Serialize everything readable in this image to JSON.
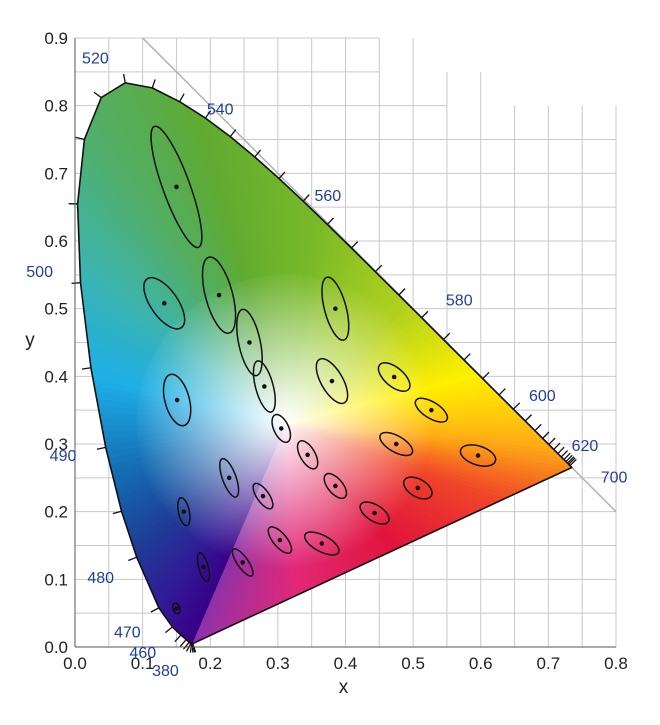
{
  "chart_data": {
    "type": "scatter",
    "title": "",
    "xlabel": "x",
    "ylabel": "y",
    "xlim": [
      0,
      0.8
    ],
    "ylim": [
      0,
      0.9
    ],
    "x_ticks": [
      "0.0",
      "0.1",
      "0.2",
      "0.3",
      "0.4",
      "0.5",
      "0.6",
      "0.7",
      "0.8"
    ],
    "y_ticks": [
      "0.0",
      "0.1",
      "0.2",
      "0.3",
      "0.4",
      "0.5",
      "0.6",
      "0.7",
      "0.8",
      "0.9"
    ],
    "grid": true,
    "locus_color": "#1f3f9f",
    "wavelength_labels": [
      {
        "nm": "380",
        "x": 0.174,
        "y": 0.005
      },
      {
        "nm": "460",
        "x": 0.144,
        "y": 0.03
      },
      {
        "nm": "470",
        "x": 0.124,
        "y": 0.058
      },
      {
        "nm": "480",
        "x": 0.091,
        "y": 0.133
      },
      {
        "nm": "490",
        "x": 0.045,
        "y": 0.295
      },
      {
        "nm": "500",
        "x": 0.008,
        "y": 0.538
      },
      {
        "nm": "520",
        "x": 0.074,
        "y": 0.834
      },
      {
        "nm": "540",
        "x": 0.23,
        "y": 0.754
      },
      {
        "nm": "560",
        "x": 0.373,
        "y": 0.624
      },
      {
        "nm": "580",
        "x": 0.513,
        "y": 0.487
      },
      {
        "nm": "600",
        "x": 0.627,
        "y": 0.373
      },
      {
        "nm": "620",
        "x": 0.691,
        "y": 0.308
      },
      {
        "nm": "700",
        "x": 0.735,
        "y": 0.265
      }
    ],
    "locus": [
      [
        0.1741,
        0.005
      ],
      [
        0.1738,
        0.0049
      ],
      [
        0.1733,
        0.0048
      ],
      [
        0.1726,
        0.0048
      ],
      [
        0.1714,
        0.0051
      ],
      [
        0.1689,
        0.0069
      ],
      [
        0.1644,
        0.0109
      ],
      [
        0.1566,
        0.0177
      ],
      [
        0.144,
        0.0297
      ],
      [
        0.1241,
        0.0578
      ],
      [
        0.0913,
        0.1327
      ],
      [
        0.0687,
        0.2007
      ],
      [
        0.0454,
        0.295
      ],
      [
        0.0235,
        0.4127
      ],
      [
        0.0082,
        0.5384
      ],
      [
        0.0039,
        0.6548
      ],
      [
        0.0139,
        0.7502
      ],
      [
        0.0389,
        0.812
      ],
      [
        0.0743,
        0.8338
      ],
      [
        0.1142,
        0.8262
      ],
      [
        0.1547,
        0.8059
      ],
      [
        0.1929,
        0.7816
      ],
      [
        0.2296,
        0.7543
      ],
      [
        0.2658,
        0.7243
      ],
      [
        0.3016,
        0.6923
      ],
      [
        0.3373,
        0.6589
      ],
      [
        0.3731,
        0.6245
      ],
      [
        0.4087,
        0.5896
      ],
      [
        0.4441,
        0.5547
      ],
      [
        0.4788,
        0.5202
      ],
      [
        0.5125,
        0.4866
      ],
      [
        0.5448,
        0.4544
      ],
      [
        0.5752,
        0.4242
      ],
      [
        0.6029,
        0.3965
      ],
      [
        0.627,
        0.3725
      ],
      [
        0.6482,
        0.3514
      ],
      [
        0.6658,
        0.334
      ],
      [
        0.6801,
        0.3197
      ],
      [
        0.6915,
        0.3083
      ],
      [
        0.7006,
        0.2993
      ],
      [
        0.7079,
        0.292
      ],
      [
        0.714,
        0.2859
      ],
      [
        0.719,
        0.2809
      ],
      [
        0.723,
        0.277
      ],
      [
        0.726,
        0.274
      ],
      [
        0.7283,
        0.2717
      ],
      [
        0.73,
        0.27
      ],
      [
        0.732,
        0.268
      ],
      [
        0.7347,
        0.2653
      ]
    ],
    "ellipses": [
      {
        "cx": 0.15,
        "cy": 0.68,
        "rx": 0.02,
        "ry": 0.095,
        "angle": -20
      },
      {
        "cx": 0.213,
        "cy": 0.52,
        "rx": 0.02,
        "ry": 0.058,
        "angle": -15
      },
      {
        "cx": 0.132,
        "cy": 0.508,
        "rx": 0.02,
        "ry": 0.044,
        "angle": -35
      },
      {
        "cx": 0.258,
        "cy": 0.45,
        "rx": 0.016,
        "ry": 0.05,
        "angle": -12
      },
      {
        "cx": 0.151,
        "cy": 0.365,
        "rx": 0.018,
        "ry": 0.039,
        "angle": -15
      },
      {
        "cx": 0.28,
        "cy": 0.385,
        "rx": 0.013,
        "ry": 0.039,
        "angle": -15
      },
      {
        "cx": 0.385,
        "cy": 0.5,
        "rx": 0.016,
        "ry": 0.048,
        "angle": -15
      },
      {
        "cx": 0.38,
        "cy": 0.393,
        "rx": 0.016,
        "ry": 0.037,
        "angle": -30
      },
      {
        "cx": 0.472,
        "cy": 0.399,
        "rx": 0.014,
        "ry": 0.028,
        "angle": -50
      },
      {
        "cx": 0.527,
        "cy": 0.35,
        "rx": 0.012,
        "ry": 0.027,
        "angle": -58
      },
      {
        "cx": 0.305,
        "cy": 0.323,
        "rx": 0.011,
        "ry": 0.022,
        "angle": -25
      },
      {
        "cx": 0.344,
        "cy": 0.284,
        "rx": 0.011,
        "ry": 0.023,
        "angle": -30
      },
      {
        "cx": 0.475,
        "cy": 0.3,
        "rx": 0.012,
        "ry": 0.027,
        "angle": -60
      },
      {
        "cx": 0.228,
        "cy": 0.25,
        "rx": 0.01,
        "ry": 0.03,
        "angle": -20
      },
      {
        "cx": 0.385,
        "cy": 0.238,
        "rx": 0.011,
        "ry": 0.022,
        "angle": -40
      },
      {
        "cx": 0.596,
        "cy": 0.283,
        "rx": 0.014,
        "ry": 0.027,
        "angle": -72
      },
      {
        "cx": 0.507,
        "cy": 0.235,
        "rx": 0.013,
        "ry": 0.023,
        "angle": -60
      },
      {
        "cx": 0.443,
        "cy": 0.198,
        "rx": 0.012,
        "ry": 0.024,
        "angle": -58
      },
      {
        "cx": 0.278,
        "cy": 0.223,
        "rx": 0.009,
        "ry": 0.022,
        "angle": -35
      },
      {
        "cx": 0.161,
        "cy": 0.2,
        "rx": 0.008,
        "ry": 0.021,
        "angle": -12
      },
      {
        "cx": 0.303,
        "cy": 0.158,
        "rx": 0.01,
        "ry": 0.024,
        "angle": -40
      },
      {
        "cx": 0.365,
        "cy": 0.153,
        "rx": 0.012,
        "ry": 0.028,
        "angle": -62
      },
      {
        "cx": 0.19,
        "cy": 0.118,
        "rx": 0.007,
        "ry": 0.022,
        "angle": -15
      },
      {
        "cx": 0.248,
        "cy": 0.125,
        "rx": 0.008,
        "ry": 0.024,
        "angle": -35
      },
      {
        "cx": 0.15,
        "cy": 0.057,
        "rx": 0.005,
        "ry": 0.008,
        "angle": -20
      }
    ]
  }
}
